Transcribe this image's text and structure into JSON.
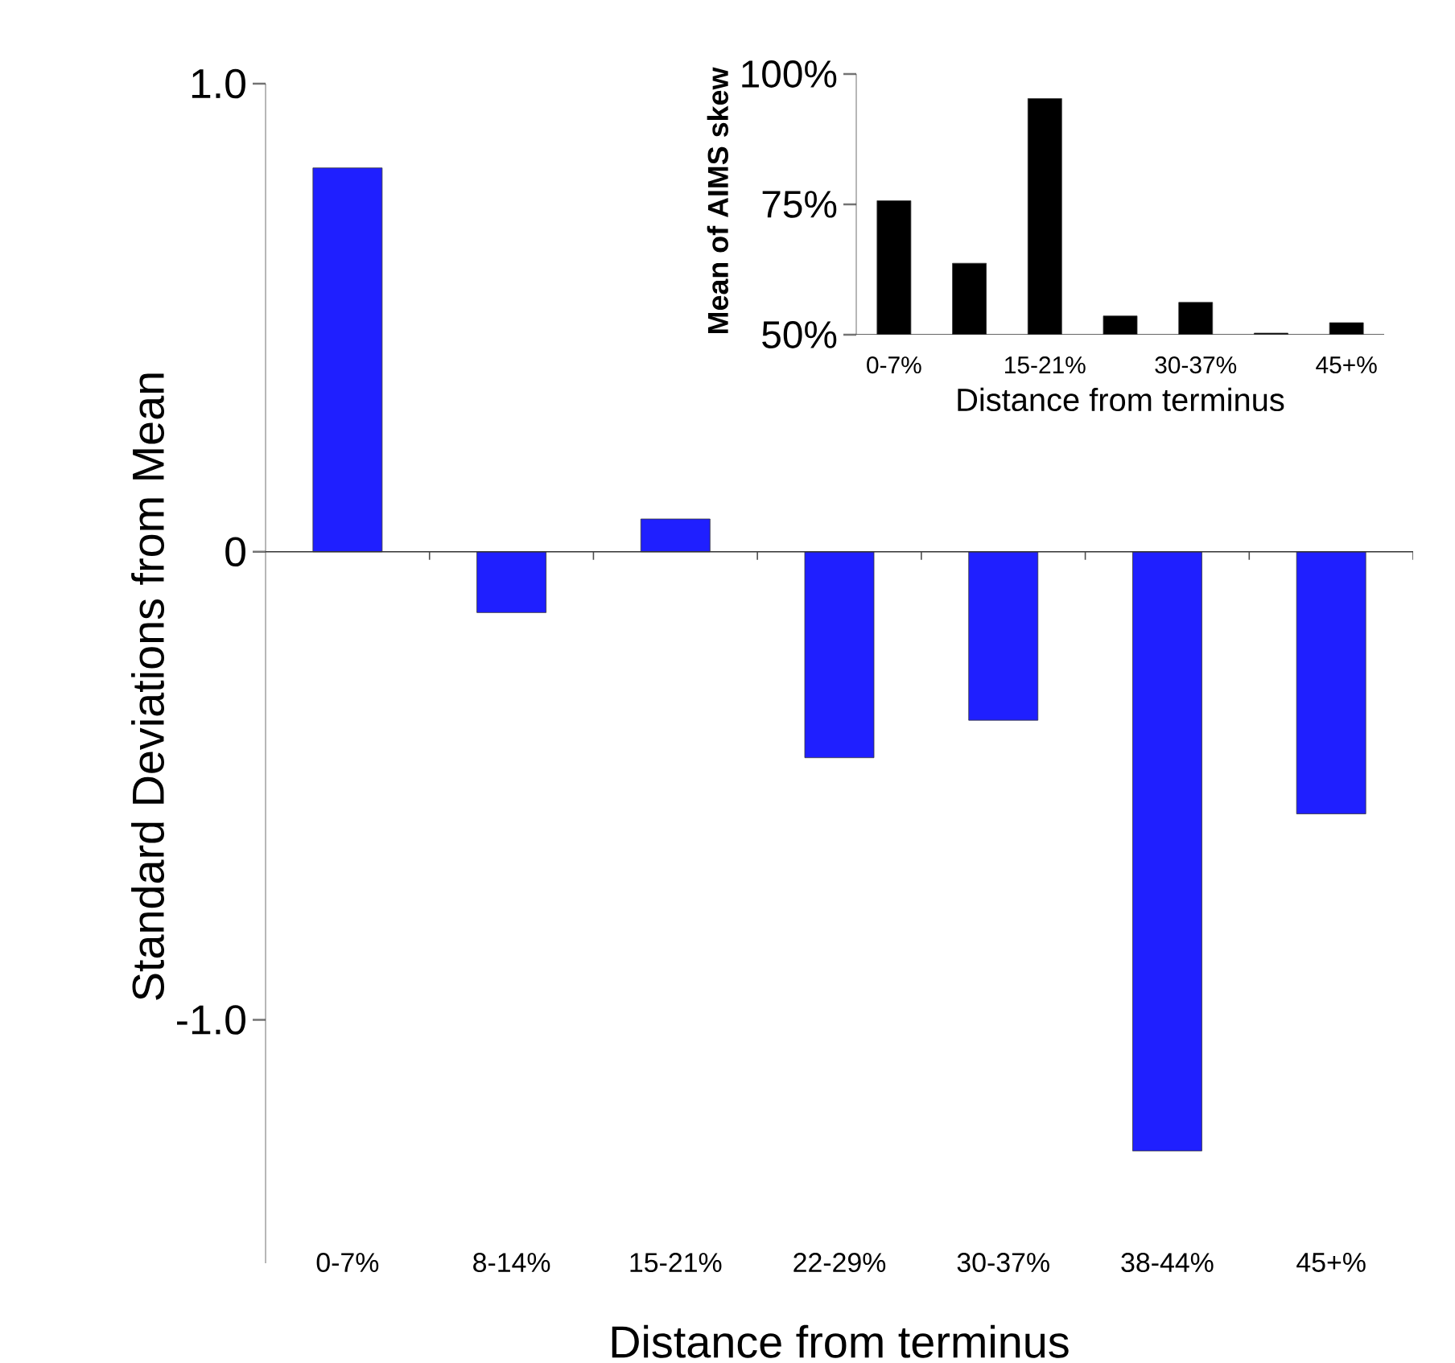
{
  "chart_data": [
    {
      "type": "bar",
      "categories": [
        "0-7%",
        "8-14%",
        "15-21%",
        "22-29%",
        "30-37%",
        "38-44%",
        "45+%"
      ],
      "values": [
        0.82,
        -0.13,
        0.07,
        -0.44,
        -0.36,
        -1.28,
        -0.56
      ],
      "color": "#1f1fff",
      "ylim": [
        -1.52,
        1.0
      ],
      "yticks": [
        {
          "value": -1.0,
          "label": "-1.0"
        },
        0,
        {
          "value": 1.0,
          "label": "1.0"
        }
      ],
      "xlabel": "Distance from terminus",
      "ylabel": "Standard Deviations from Mean"
    },
    {
      "type": "bar",
      "categories": [
        "0-7%",
        null,
        "15-21%",
        null,
        "30-37%",
        null,
        "45+%"
      ],
      "values": [
        75.7,
        63.7,
        95.3,
        53.6,
        56.2,
        50.3,
        52.3
      ],
      "color": "#000000",
      "ylim": [
        50,
        100
      ],
      "yticks": [
        {
          "value": 50,
          "label": "50%"
        },
        {
          "value": 75,
          "label": "75%"
        },
        {
          "value": 100,
          "label": "100%"
        }
      ],
      "xlabel": "Distance from terminus",
      "ylabel": "Mean of AIMS skew"
    }
  ]
}
